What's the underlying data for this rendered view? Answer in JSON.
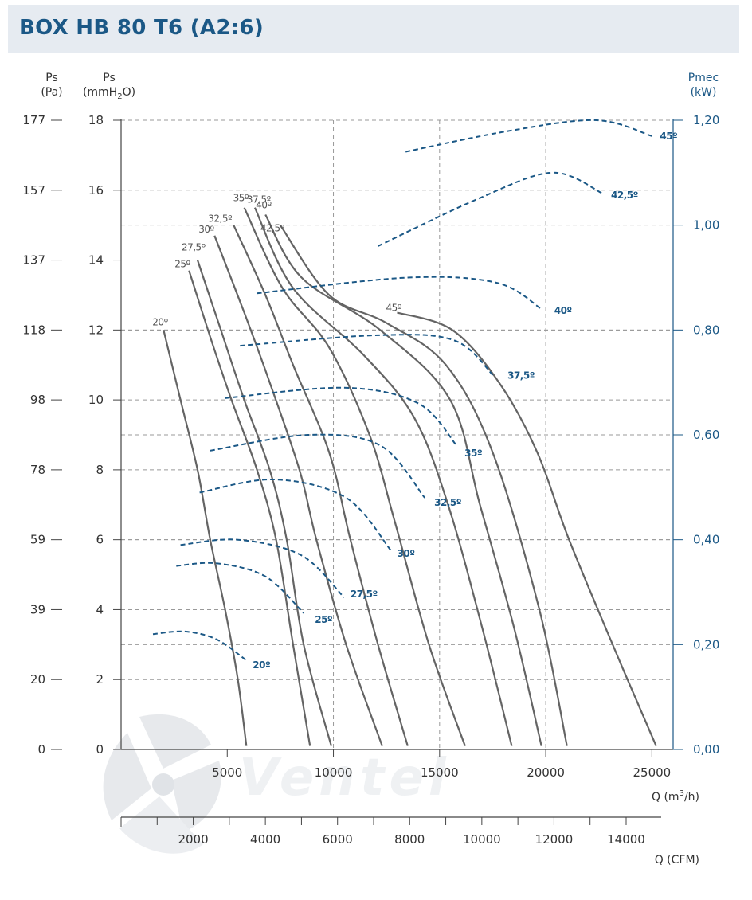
{
  "header": {
    "title": "BOX HB 80 T6 (A2:6)"
  },
  "watermark": {
    "text": "Ventel"
  },
  "colors": {
    "header_bg": "#e6ebf1",
    "title": "#1b5886",
    "pressure_curve": "#646464",
    "power_curve": "#1b5886",
    "axis_gray": "#444444",
    "axis_blue": "#1b5886",
    "grid": "#999999"
  },
  "chart_data": {
    "type": "line",
    "title": "BOX HB 80 T6 (A2:6)",
    "axes": {
      "ps_pa": {
        "label_line1": "Ps",
        "label_line2": "(Pa)",
        "ticks": [
          "177",
          "157",
          "137",
          "118",
          "98",
          "78",
          "59",
          "39",
          "20",
          "0"
        ]
      },
      "ps_mm": {
        "label_line1": "Ps",
        "label_line2_pre": "(mmH",
        "label_line2_sub": "2",
        "label_line2_post": "O)",
        "range": [
          0,
          18
        ],
        "ticks": [
          "18",
          "16",
          "14",
          "12",
          "10",
          "8",
          "6",
          "4",
          "2",
          "0"
        ]
      },
      "pmec": {
        "label_line1": "Pmec",
        "label_line2": "(kW)",
        "range": [
          0,
          1.2
        ],
        "ticks": [
          "1,20",
          "1,00",
          "0,80",
          "0,60",
          "0,40",
          "0,20",
          "0,00"
        ]
      },
      "q_m3h": {
        "label_pre": "Q (m",
        "label_sup": "3",
        "label_post": "/h)",
        "ticks": [
          "5000",
          "10000",
          "15000",
          "20000",
          "25000"
        ],
        "range": [
          0,
          26000
        ]
      },
      "q_cfm": {
        "label": "Q (CFM)",
        "ticks": [
          "2000",
          "4000",
          "6000",
          "8000",
          "10000",
          "12000",
          "14000"
        ]
      }
    },
    "grid": true,
    "pressure_series": [
      {
        "name": "20º",
        "x": [
          2000,
          2800,
          3600,
          4200,
          4900,
          5500,
          5900
        ],
        "y": [
          12.0,
          10.0,
          8.0,
          6.0,
          4.0,
          2.0,
          0.1
        ]
      },
      {
        "name": "25º",
        "x": [
          3200,
          4200,
          5200,
          6400,
          7300,
          8100,
          8900
        ],
        "y": [
          13.7,
          11.8,
          10.0,
          8.0,
          6.0,
          3.0,
          0.1
        ]
      },
      {
        "name": "27.5º",
        "x": [
          3600,
          4700,
          5800,
          7000,
          7800,
          8600,
          9900
        ],
        "y": [
          14.0,
          12.0,
          10.0,
          8.0,
          6.0,
          3.0,
          0.1
        ]
      },
      {
        "name": "30º",
        "x": [
          4400,
          5800,
          7000,
          8400,
          9200,
          10600,
          12300
        ],
        "y": [
          14.7,
          12.5,
          10.5,
          8.0,
          6.0,
          3.0,
          0.1
        ]
      },
      {
        "name": "32,5º",
        "x": [
          5300,
          6800,
          8100,
          9800,
          10800,
          12100,
          13500
        ],
        "y": [
          15.0,
          13.0,
          11.0,
          8.5,
          6.0,
          3.0,
          0.1
        ]
      },
      {
        "name": "35º",
        "x": [
          5800,
          7600,
          9800,
          11700,
          12900,
          14500,
          16200
        ],
        "y": [
          15.5,
          13.2,
          11.5,
          9.0,
          6.5,
          3.0,
          0.1
        ]
      },
      {
        "name": "37,5º",
        "x": [
          6300,
          8100,
          11400,
          13800,
          15400,
          17000,
          18400
        ],
        "y": [
          15.5,
          13.2,
          11.3,
          9.5,
          7.0,
          3.5,
          0.1
        ]
      },
      {
        "name": "40º",
        "x": [
          6800,
          8500,
          12200,
          15500,
          16900,
          18500,
          19800
        ],
        "y": [
          15.3,
          13.5,
          12.0,
          10.0,
          7.0,
          3.5,
          0.1
        ]
      },
      {
        "name": "42,5º",
        "x": [
          7500,
          9800,
          12500,
          15300,
          17500,
          19700,
          21000
        ],
        "y": [
          15.0,
          13.0,
          12.2,
          11.0,
          8.5,
          4.0,
          0.1
        ]
      },
      {
        "name": "45º",
        "x": [
          13000,
          15600,
          17800,
          19600,
          21100,
          23500,
          25200
        ],
        "y": [
          12.5,
          12.0,
          10.5,
          8.5,
          6.0,
          2.5,
          0.1
        ]
      }
    ],
    "power_series": [
      {
        "name": "20º",
        "x": [
          1500,
          3000,
          4500,
          5900
        ],
        "y": [
          0.22,
          0.225,
          0.21,
          0.17
        ]
      },
      {
        "name": "25º",
        "x": [
          2600,
          4500,
          6800,
          8600
        ],
        "y": [
          0.35,
          0.355,
          0.33,
          0.26
        ]
      },
      {
        "name": "27,5º",
        "x": [
          2800,
          5500,
          8500,
          10500
        ],
        "y": [
          0.39,
          0.4,
          0.37,
          0.29
        ]
      },
      {
        "name": "30º",
        "x": [
          3700,
          7200,
          10600,
          12700
        ],
        "y": [
          0.49,
          0.515,
          0.48,
          0.38
        ]
      },
      {
        "name": "32,5º",
        "x": [
          4200,
          8800,
          12200,
          14300
        ],
        "y": [
          0.57,
          0.6,
          0.58,
          0.48
        ]
      },
      {
        "name": "35º",
        "x": [
          4900,
          10500,
          14000,
          15800
        ],
        "y": [
          0.67,
          0.69,
          0.66,
          0.58
        ]
      },
      {
        "name": "37,5º",
        "x": [
          5600,
          12100,
          15700,
          17600
        ],
        "y": [
          0.77,
          0.79,
          0.78,
          0.71
        ]
      },
      {
        "name": "40º",
        "x": [
          6400,
          13500,
          17700,
          19800
        ],
        "y": [
          0.87,
          0.9,
          0.89,
          0.84
        ]
      },
      {
        "name": "42,5º",
        "x": [
          12100,
          16800,
          20300,
          22700
        ],
        "y": [
          0.96,
          1.05,
          1.1,
          1.06
        ]
      },
      {
        "name": "45º",
        "x": [
          13400,
          18300,
          22400,
          25000
        ],
        "y": [
          1.14,
          1.18,
          1.2,
          1.17
        ]
      }
    ],
    "curve_labels": {
      "pressure": [
        "20º",
        "25º",
        "27,5º",
        "30º",
        "32,5º",
        "35º",
        "37,5º",
        "40º",
        "42,5º",
        "45º"
      ],
      "power": [
        "20º",
        "25º",
        "27,5º",
        "30º",
        "32,5º",
        "35º",
        "37,5º",
        "40º",
        "42,5º",
        "45º"
      ]
    }
  }
}
